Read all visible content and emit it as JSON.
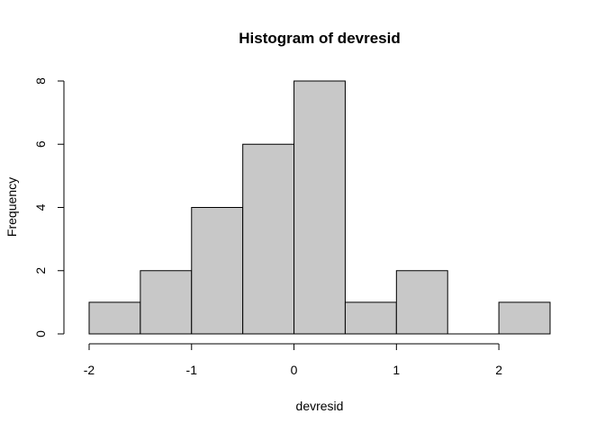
{
  "chart_data": {
    "type": "bar",
    "title": "Histogram of devresid",
    "xlabel": "devresid",
    "ylabel": "Frequency",
    "bins": [
      {
        "start": -2.0,
        "end": -1.5,
        "count": 1
      },
      {
        "start": -1.5,
        "end": -1.0,
        "count": 2
      },
      {
        "start": -1.0,
        "end": -0.5,
        "count": 4
      },
      {
        "start": -0.5,
        "end": 0.0,
        "count": 6
      },
      {
        "start": 0.0,
        "end": 0.5,
        "count": 8
      },
      {
        "start": 0.5,
        "end": 1.0,
        "count": 1
      },
      {
        "start": 1.0,
        "end": 1.5,
        "count": 2
      },
      {
        "start": 1.5,
        "end": 2.0,
        "count": 0
      },
      {
        "start": 2.0,
        "end": 2.5,
        "count": 1
      }
    ],
    "xticks": [
      -2,
      -1,
      0,
      1,
      2
    ],
    "yticks": [
      0,
      2,
      4,
      6,
      8
    ],
    "xlim": [
      -2,
      2.5
    ],
    "ylim": [
      0,
      8
    ],
    "bar_color": "#c8c8c8",
    "grid": false,
    "legend": "none"
  }
}
